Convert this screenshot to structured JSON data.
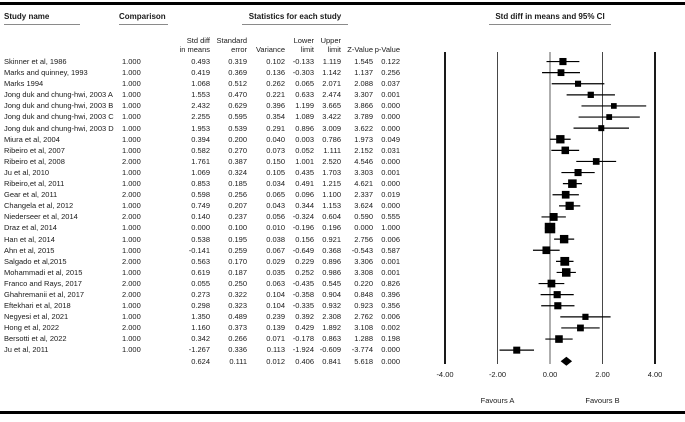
{
  "header": {
    "study_name": "Study name",
    "comparison": "Comparison",
    "stats_group": "Statistics for each study",
    "ci_group": "Std diff in means and 95% CI",
    "stat_columns": [
      {
        "line1": "Std diff",
        "line2": "in means"
      },
      {
        "line1": "Standard",
        "line2": "error"
      },
      {
        "line1": "",
        "line2": "Variance"
      },
      {
        "line1": "Lower",
        "line2": "limit"
      },
      {
        "line1": "Upper",
        "line2": "limit"
      },
      {
        "line1": "",
        "line2": "Z-Value"
      },
      {
        "line1": "",
        "line2": "p-Value"
      }
    ]
  },
  "chart_data": {
    "type": "forest",
    "title": "Std diff in means and 95% CI",
    "x_range": [
      -4,
      4
    ],
    "x_ticks": [
      -4,
      -2,
      0,
      2,
      4
    ],
    "x_tick_labels": [
      "-4.00",
      "-2.00",
      "0.00",
      "2.00",
      "4.00"
    ],
    "favours_left": "Favours A",
    "favours_right": "Favours B",
    "studies": [
      {
        "name": "Skinner et al, 1986",
        "comparison": "1.000",
        "std_diff": "0.493",
        "std_err": "0.319",
        "variance": "0.102",
        "lower": "-0.133",
        "upper": "1.119",
        "z": "1.545",
        "p": "0.122"
      },
      {
        "name": "Marks and quinney, 1993",
        "comparison": "1.000",
        "std_diff": "0.419",
        "std_err": "0.369",
        "variance": "0.136",
        "lower": "-0.303",
        "upper": "1.142",
        "z": "1.137",
        "p": "0.256"
      },
      {
        "name": "Marks 1994",
        "comparison": "1.000",
        "std_diff": "1.068",
        "std_err": "0.512",
        "variance": "0.262",
        "lower": "0.065",
        "upper": "2.071",
        "z": "2.088",
        "p": "0.037"
      },
      {
        "name": "Jong duk and chung-hwi, 2003 A",
        "comparison": "1.000",
        "std_diff": "1.553",
        "std_err": "0.470",
        "variance": "0.221",
        "lower": "0.633",
        "upper": "2.474",
        "z": "3.307",
        "p": "0.001"
      },
      {
        "name": "Jong duk and chung-hwi, 2003 B",
        "comparison": "1.000",
        "std_diff": "2.432",
        "std_err": "0.629",
        "variance": "0.396",
        "lower": "1.199",
        "upper": "3.665",
        "z": "3.866",
        "p": "0.000"
      },
      {
        "name": "Jong duk and chung-hwi, 2003 C",
        "comparison": "1.000",
        "std_diff": "2.255",
        "std_err": "0.595",
        "variance": "0.354",
        "lower": "1.089",
        "upper": "3.422",
        "z": "3.789",
        "p": "0.000"
      },
      {
        "name": "Jong duk and chung-hwi, 2003 D",
        "comparison": "1.000",
        "std_diff": "1.953",
        "std_err": "0.539",
        "variance": "0.291",
        "lower": "0.896",
        "upper": "3.009",
        "z": "3.622",
        "p": "0.000"
      },
      {
        "name": "Miura et al, 2004",
        "comparison": "1.000",
        "std_diff": "0.394",
        "std_err": "0.200",
        "variance": "0.040",
        "lower": "0.003",
        "upper": "0.786",
        "z": "1.973",
        "p": "0.049"
      },
      {
        "name": "Ribeiro et al, 2007",
        "comparison": "1.000",
        "std_diff": "0.582",
        "std_err": "0.270",
        "variance": "0.073",
        "lower": "0.052",
        "upper": "1.111",
        "z": "2.152",
        "p": "0.031"
      },
      {
        "name": "Ribeiro et al, 2008",
        "comparison": "2.000",
        "std_diff": "1.761",
        "std_err": "0.387",
        "variance": "0.150",
        "lower": "1.001",
        "upper": "2.520",
        "z": "4.546",
        "p": "0.000"
      },
      {
        "name": "Ju et al, 2010",
        "comparison": "1.000",
        "std_diff": "1.069",
        "std_err": "0.324",
        "variance": "0.105",
        "lower": "0.435",
        "upper": "1.703",
        "z": "3.303",
        "p": "0.001"
      },
      {
        "name": "Ribeiro,et al, 2011",
        "comparison": "1.000",
        "std_diff": "0.853",
        "std_err": "0.185",
        "variance": "0.034",
        "lower": "0.491",
        "upper": "1.215",
        "z": "4.621",
        "p": "0.000"
      },
      {
        "name": "Gear et al, 2011",
        "comparison": "2.000",
        "std_diff": "0.598",
        "std_err": "0.256",
        "variance": "0.065",
        "lower": "0.096",
        "upper": "1.100",
        "z": "2.337",
        "p": "0.019"
      },
      {
        "name": "Changela et al, 2012",
        "comparison": "1.000",
        "std_diff": "0.749",
        "std_err": "0.207",
        "variance": "0.043",
        "lower": "0.344",
        "upper": "1.153",
        "z": "3.624",
        "p": "0.000"
      },
      {
        "name": "Niederseer et al, 2014",
        "comparison": "2.000",
        "std_diff": "0.140",
        "std_err": "0.237",
        "variance": "0.056",
        "lower": "-0.324",
        "upper": "0.604",
        "z": "0.590",
        "p": "0.555"
      },
      {
        "name": "Draz et al, 2014",
        "comparison": "1.000",
        "std_diff": "0.000",
        "std_err": "0.100",
        "variance": "0.010",
        "lower": "-0.196",
        "upper": "0.196",
        "z": "0.000",
        "p": "1.000"
      },
      {
        "name": "Han et al, 2014",
        "comparison": "1.000",
        "std_diff": "0.538",
        "std_err": "0.195",
        "variance": "0.038",
        "lower": "0.156",
        "upper": "0.921",
        "z": "2.756",
        "p": "0.006"
      },
      {
        "name": "Ahn et al, 2015",
        "comparison": "1.000",
        "std_diff": "-0.141",
        "std_err": "0.259",
        "variance": "0.067",
        "lower": "-0.649",
        "upper": "0.368",
        "z": "-0.543",
        "p": "0.587"
      },
      {
        "name": "Salgado et al,2015",
        "comparison": "2.000",
        "std_diff": "0.563",
        "std_err": "0.170",
        "variance": "0.029",
        "lower": "0.229",
        "upper": "0.896",
        "z": "3.306",
        "p": "0.001"
      },
      {
        "name": "Mohammadi et al, 2015",
        "comparison": "1.000",
        "std_diff": "0.619",
        "std_err": "0.187",
        "variance": "0.035",
        "lower": "0.252",
        "upper": "0.986",
        "z": "3.308",
        "p": "0.001"
      },
      {
        "name": "Franco and Rays, 2017",
        "comparison": "2.000",
        "std_diff": "0.055",
        "std_err": "0.250",
        "variance": "0.063",
        "lower": "-0.435",
        "upper": "0.545",
        "z": "0.220",
        "p": "0.826"
      },
      {
        "name": "Ghahremanii et al, 2017",
        "comparison": "2.000",
        "std_diff": "0.273",
        "std_err": "0.322",
        "variance": "0.104",
        "lower": "-0.358",
        "upper": "0.904",
        "z": "0.848",
        "p": "0.396"
      },
      {
        "name": "Eftekhari et al, 2018",
        "comparison": "1.000",
        "std_diff": "0.298",
        "std_err": "0.323",
        "variance": "0.104",
        "lower": "-0.335",
        "upper": "0.932",
        "z": "0.923",
        "p": "0.356"
      },
      {
        "name": "Negyesi et al, 2021",
        "comparison": "1.000",
        "std_diff": "1.350",
        "std_err": "0.489",
        "variance": "0.239",
        "lower": "0.392",
        "upper": "2.308",
        "z": "2.762",
        "p": "0.006"
      },
      {
        "name": "Hong et al, 2022",
        "comparison": "2.000",
        "std_diff": "1.160",
        "std_err": "0.373",
        "variance": "0.139",
        "lower": "0.429",
        "upper": "1.892",
        "z": "3.108",
        "p": "0.002"
      },
      {
        "name": "Bersotti et al, 2022",
        "comparison": "1.000",
        "std_diff": "0.342",
        "std_err": "0.266",
        "variance": "0.071",
        "lower": "-0.178",
        "upper": "0.863",
        "z": "1.288",
        "p": "0.198"
      },
      {
        "name": "Ju et al, 2011",
        "comparison": "1.000",
        "std_diff": "-1.267",
        "std_err": "0.336",
        "variance": "0.113",
        "lower": "-1.924",
        "upper": "-0.609",
        "z": "-3.774",
        "p": "0.000"
      }
    ],
    "summary": {
      "name": "",
      "comparison": "",
      "std_diff": "0.624",
      "std_err": "0.111",
      "variance": "0.012",
      "lower": "0.406",
      "upper": "0.841",
      "z": "5.618",
      "p": "0.000"
    }
  },
  "colors": {
    "marker": "#000000",
    "zero_line": "#999999",
    "grid_line": "#333333",
    "frame_line": "#000000",
    "underline": "#8a8a8a"
  }
}
